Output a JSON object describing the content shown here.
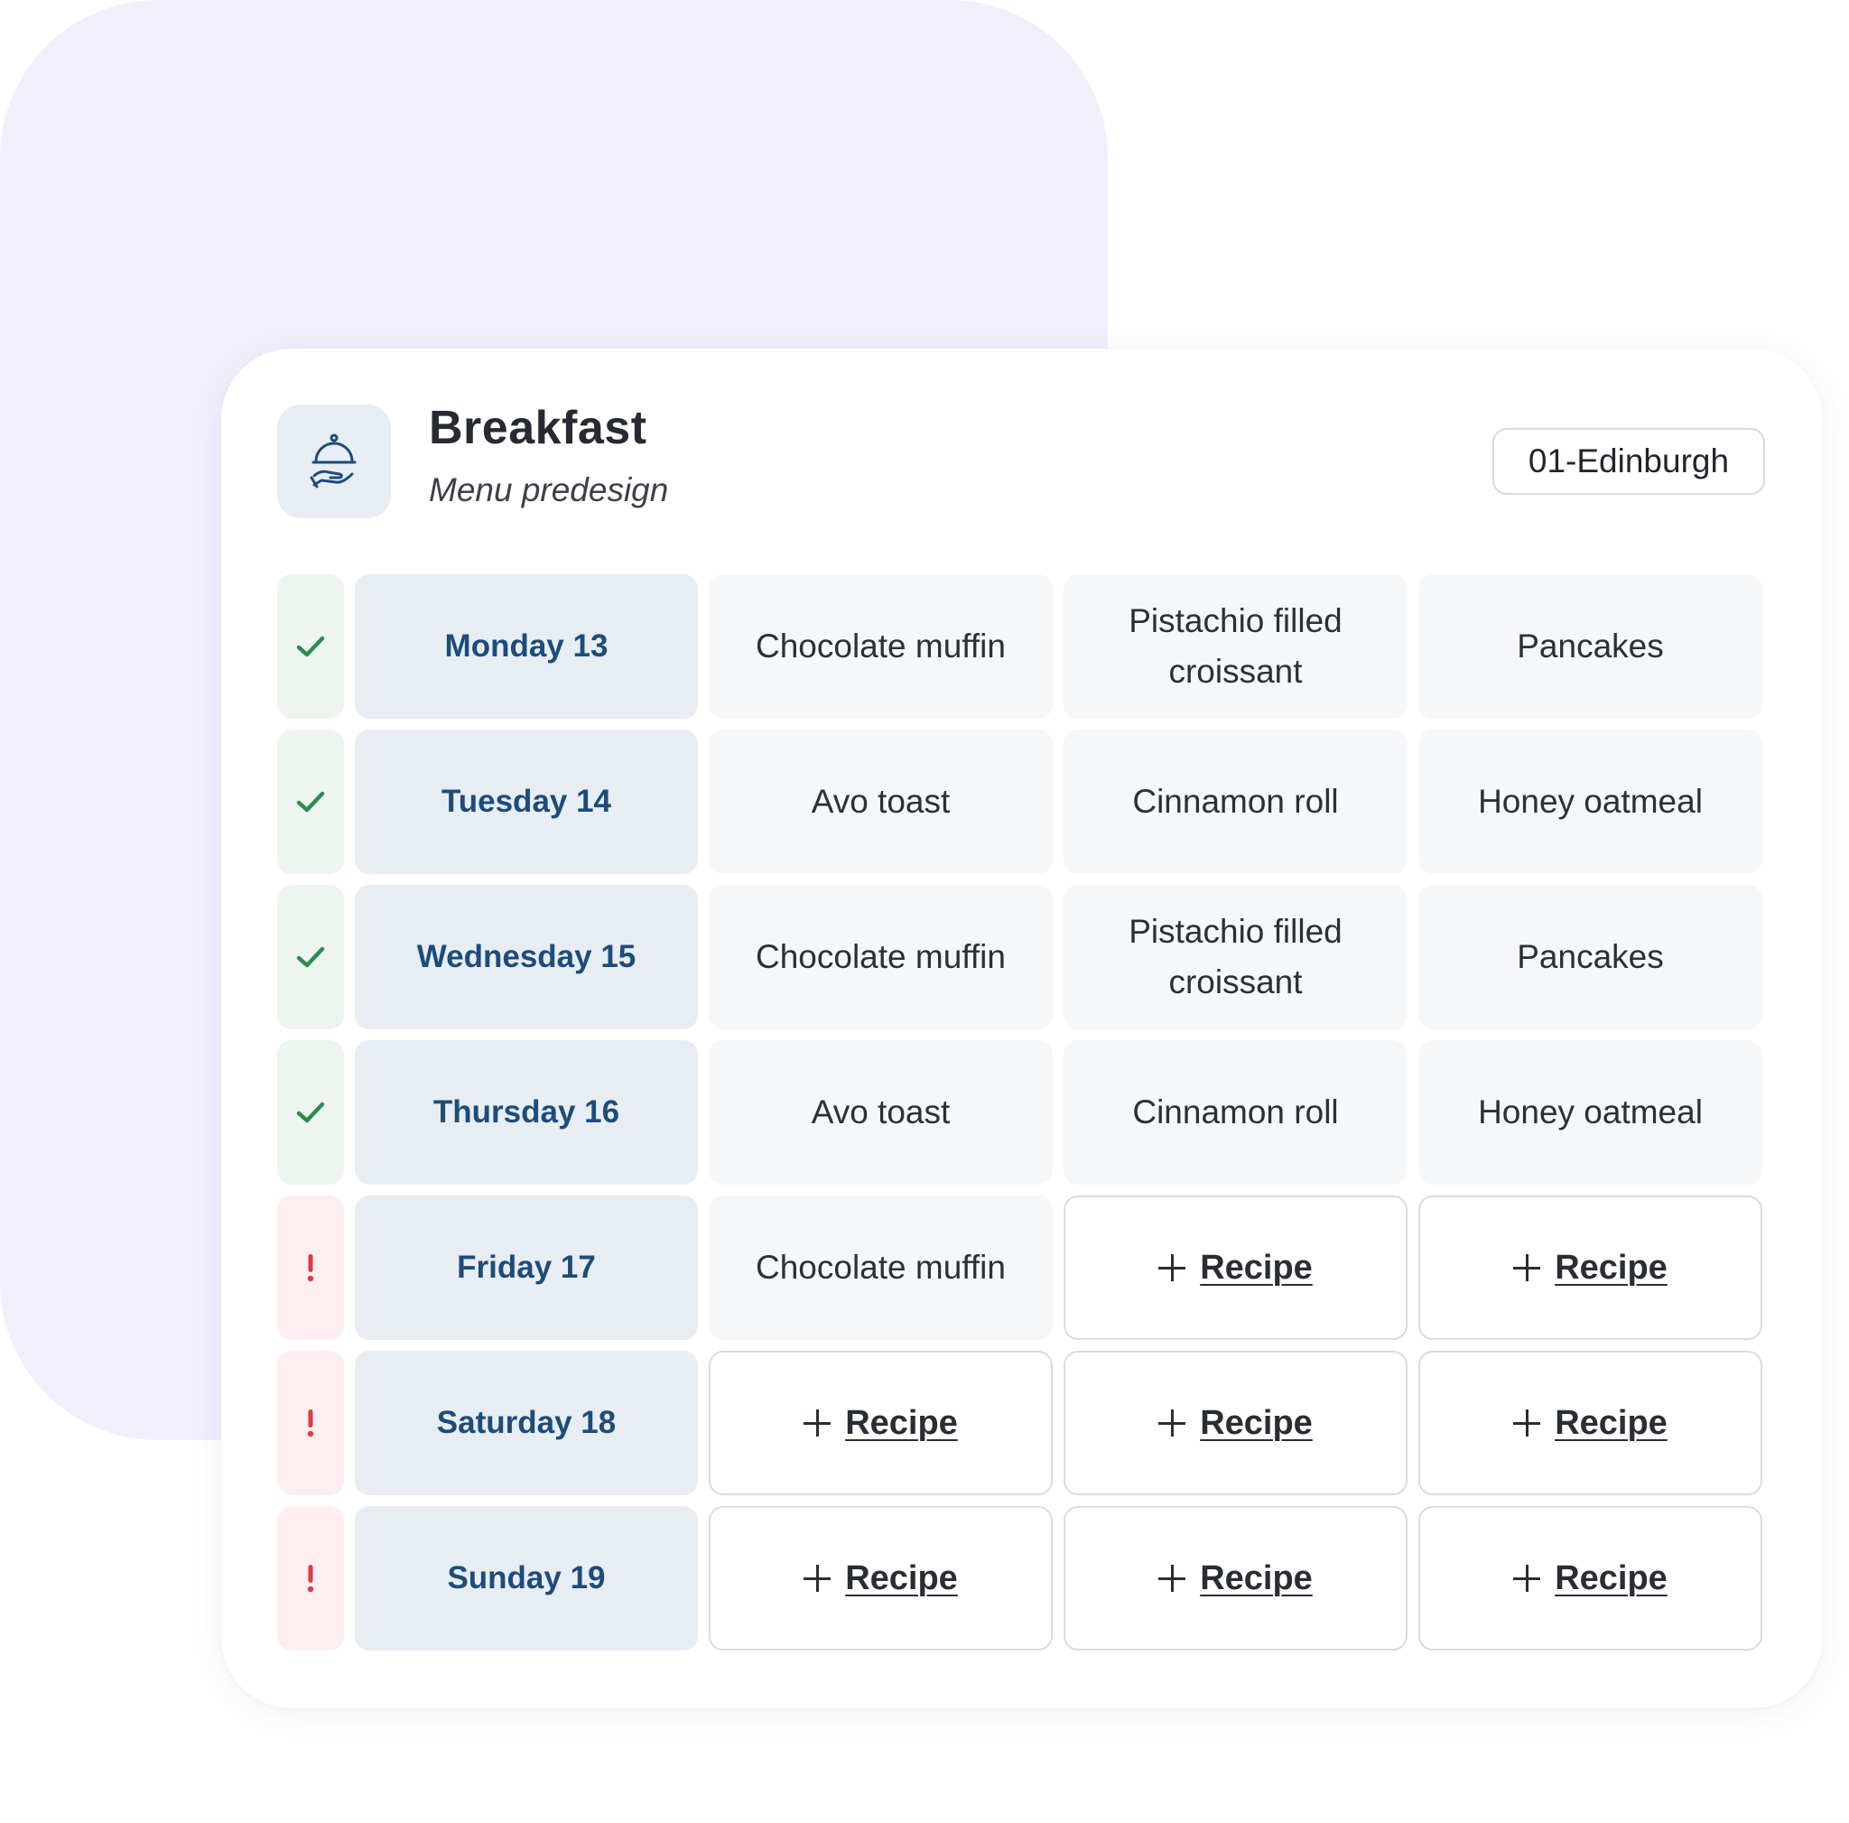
{
  "header": {
    "icon": "serving-cloche-icon",
    "title": "Breakfast",
    "subtitle": "Menu predesign",
    "location": "01-Edinburgh"
  },
  "colors": {
    "accent": "#1c4c7a",
    "ok": "#2e8b4e",
    "warn": "#e03a48",
    "background_blob": "#f1effc"
  },
  "add_label": "Recipe",
  "days": [
    {
      "day": "Monday 13",
      "status": "ok",
      "meals": [
        "Chocolate muffin",
        "Pistachio filled croissant",
        "Pancakes"
      ]
    },
    {
      "day": "Tuesday 14",
      "status": "ok",
      "meals": [
        "Avo toast",
        "Cinnamon roll",
        "Honey oatmeal"
      ]
    },
    {
      "day": "Wednesday 15",
      "status": "ok",
      "meals": [
        "Chocolate muffin",
        "Pistachio filled croissant",
        "Pancakes"
      ]
    },
    {
      "day": "Thursday 16",
      "status": "ok",
      "meals": [
        "Avo toast",
        "Cinnamon roll",
        "Honey oatmeal"
      ]
    },
    {
      "day": "Friday 17",
      "status": "warn",
      "meals": [
        "Chocolate muffin",
        null,
        null
      ]
    },
    {
      "day": "Saturday 18",
      "status": "warn",
      "meals": [
        null,
        null,
        null
      ]
    },
    {
      "day": "Sunday 19",
      "status": "warn",
      "meals": [
        null,
        null,
        null
      ]
    }
  ]
}
